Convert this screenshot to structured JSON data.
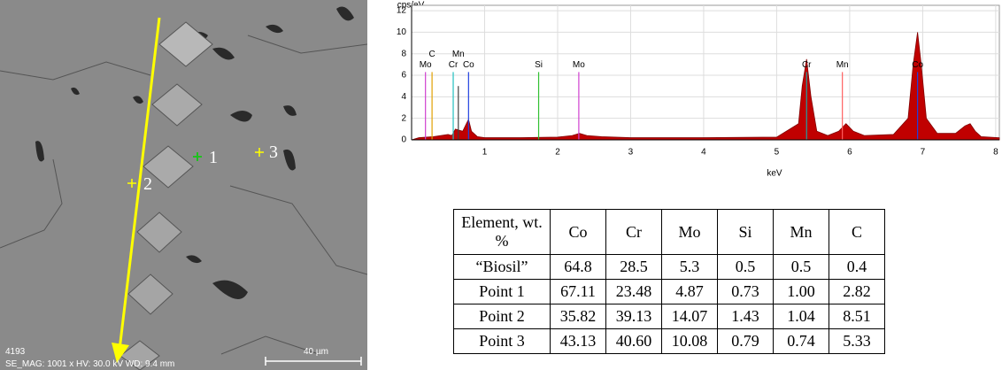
{
  "image": {
    "markers": [
      "1",
      "2",
      "3"
    ],
    "sample_id": "4193",
    "info": "SE_MAG: 1001 x HV: 30.0 kV WD: 9.4 mm",
    "scale_bar": "40 µm"
  },
  "chart_data": {
    "type": "area",
    "y_axis_label": "cps/eV",
    "x_axis_label": "keV",
    "color": "#c00000",
    "x": [
      0,
      0.1,
      0.3,
      0.5,
      0.55,
      0.6,
      0.7,
      0.75,
      0.78,
      0.82,
      0.9,
      1.0,
      1.5,
      2.0,
      2.2,
      2.3,
      2.4,
      2.6,
      3.0,
      4.0,
      5.0,
      5.3,
      5.35,
      5.41,
      5.47,
      5.55,
      5.7,
      5.85,
      5.95,
      6.05,
      6.2,
      6.6,
      6.8,
      6.87,
      6.93,
      6.98,
      7.05,
      7.2,
      7.45,
      7.58,
      7.65,
      7.72,
      7.8,
      8.05
    ],
    "y": [
      0,
      0.2,
      0.3,
      0.5,
      0.4,
      1.0,
      0.8,
      1.5,
      1.9,
      0.8,
      0.3,
      0.2,
      0.2,
      0.25,
      0.4,
      0.6,
      0.4,
      0.3,
      0.2,
      0.2,
      0.25,
      1.5,
      5,
      7.5,
      4,
      0.8,
      0.4,
      0.8,
      1.5,
      0.8,
      0.4,
      0.5,
      2,
      7,
      10,
      7,
      2,
      0.6,
      0.6,
      1.3,
      1.5,
      0.8,
      0.3,
      0.2
    ],
    "peaks": [
      {
        "label": "Mo",
        "energy": 0.19,
        "height": 6.3,
        "color": "#d040d0"
      },
      {
        "label": "C",
        "energy": 0.28,
        "height": 6.3,
        "color": "#e0a000"
      },
      {
        "label": "Cr",
        "energy": 0.57,
        "height": 6.3,
        "color": "#20c0c0"
      },
      {
        "label": "Mn",
        "energy": 0.64,
        "height": 5.0,
        "color": "#404040"
      },
      {
        "label": "Co",
        "energy": 0.78,
        "height": 6.3,
        "color": "#2040e0"
      },
      {
        "label": "Si",
        "energy": 1.74,
        "height": 6.3,
        "color": "#30c030"
      },
      {
        "label": "Mo",
        "energy": 2.29,
        "height": 6.3,
        "color": "#d040d0"
      },
      {
        "label": "Cr",
        "energy": 5.41,
        "height": 6.3,
        "color": "#20a0a0"
      },
      {
        "label": "Mn",
        "energy": 5.9,
        "height": 6.3,
        "color": "#ff6060"
      },
      {
        "label": "Co",
        "energy": 6.93,
        "height": 6.3,
        "color": "#2040e0"
      }
    ],
    "xlim": [
      0,
      8.05
    ],
    "ylim": [
      0,
      12.5
    ],
    "xticks": [
      1,
      2,
      3,
      4,
      5,
      6,
      7,
      8
    ],
    "yticks": [
      0,
      2,
      4,
      6,
      8,
      10,
      12
    ],
    "grid": true
  },
  "table": {
    "header": [
      "Element, wt. %",
      "Co",
      "Cr",
      "Mo",
      "Si",
      "Mn",
      "C"
    ],
    "rows": [
      [
        "“Biosil”",
        "64.8",
        "28.5",
        "5.3",
        "0.5",
        "0.5",
        "0.4"
      ],
      [
        "Point 1",
        "67.11",
        "23.48",
        "4.87",
        "0.73",
        "1.00",
        "2.82"
      ],
      [
        "Point 2",
        "35.82",
        "39.13",
        "14.07",
        "1.43",
        "1.04",
        "8.51"
      ],
      [
        "Point 3",
        "43.13",
        "40.60",
        "10.08",
        "0.79",
        "0.74",
        "5.33"
      ]
    ]
  }
}
